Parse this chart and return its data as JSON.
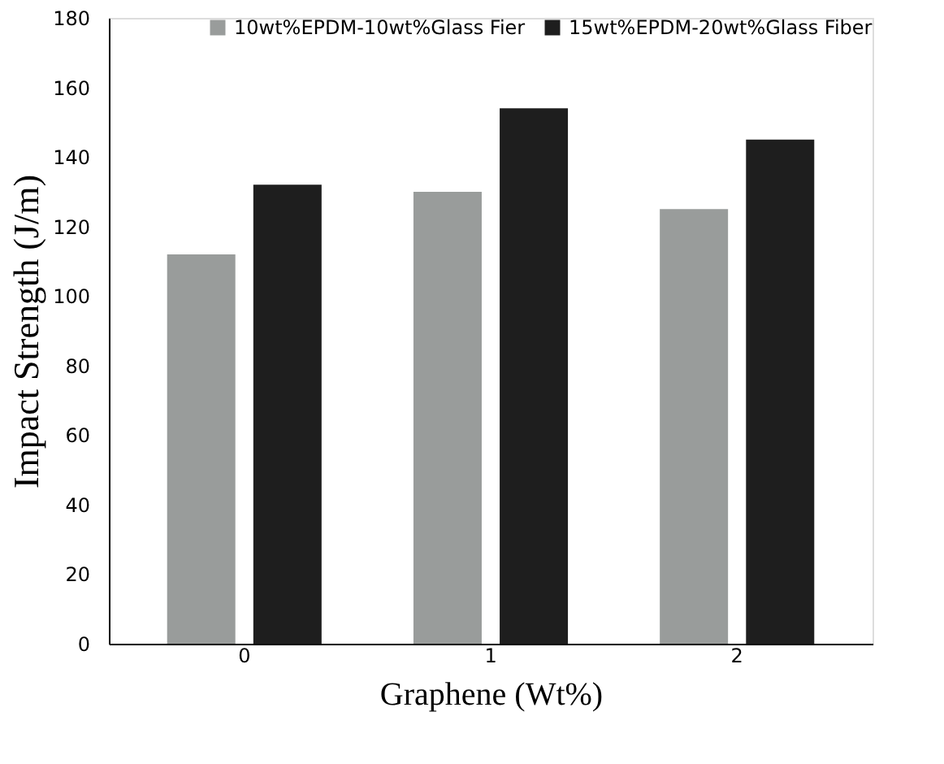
{
  "chart_data": {
    "type": "bar",
    "xlabel": "Graphene (Wt%)",
    "ylabel": "Impact Strength (J/m)",
    "categories": [
      "0",
      "1",
      "2"
    ],
    "series": [
      {
        "name": "10wt%EPDM-10wt%Glass Fier",
        "color": "#999c9b",
        "values": [
          112,
          130,
          125
        ]
      },
      {
        "name": "15wt%EPDM-20wt%Glass Fiber",
        "color": "#1e1e1e",
        "values": [
          132,
          154,
          145
        ]
      }
    ],
    "ylim": [
      0,
      180
    ],
    "yticks": [
      0,
      20,
      40,
      60,
      80,
      100,
      120,
      140,
      160,
      180
    ],
    "grid": false,
    "legend": "top right"
  }
}
